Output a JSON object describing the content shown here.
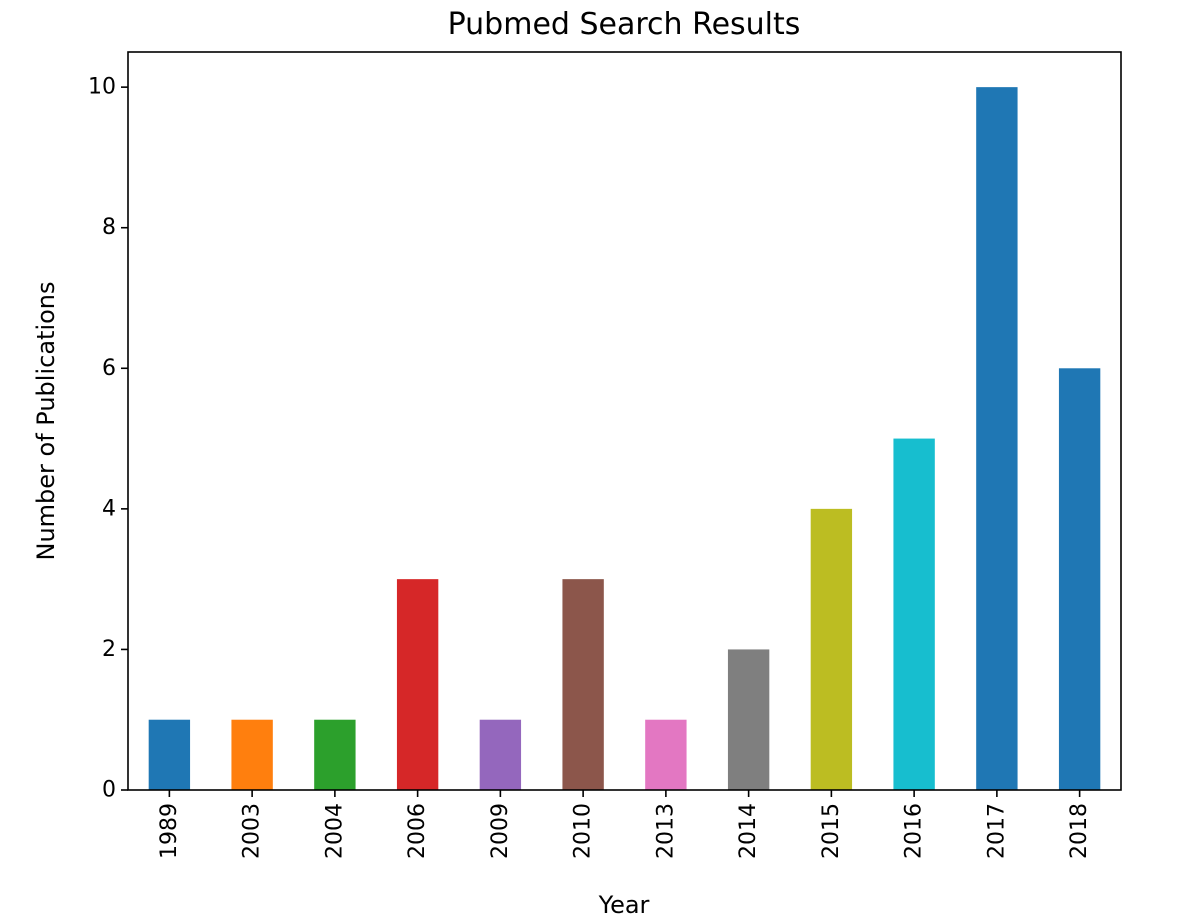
{
  "chart_data": {
    "type": "bar",
    "title": "Pubmed Search Results",
    "xlabel": "Year",
    "ylabel": "Number of Publications",
    "categories": [
      "1989",
      "2003",
      "2004",
      "2006",
      "2009",
      "2010",
      "2013",
      "2014",
      "2015",
      "2016",
      "2017",
      "2018"
    ],
    "values": [
      1,
      1,
      1,
      3,
      1,
      3,
      1,
      2,
      4,
      5,
      10,
      6
    ],
    "colors": [
      "#1f77b4",
      "#ff7f0e",
      "#2ca02c",
      "#d62728",
      "#9467bd",
      "#8c564b",
      "#e377c2",
      "#7f7f7f",
      "#bcbd22",
      "#17becf",
      "#1f77b4",
      "#1f77b4"
    ],
    "yticks": [
      "0",
      "2",
      "4",
      "6",
      "8",
      "10"
    ],
    "ylim": [
      0,
      10.5
    ],
    "grid": false,
    "legend": "none"
  }
}
